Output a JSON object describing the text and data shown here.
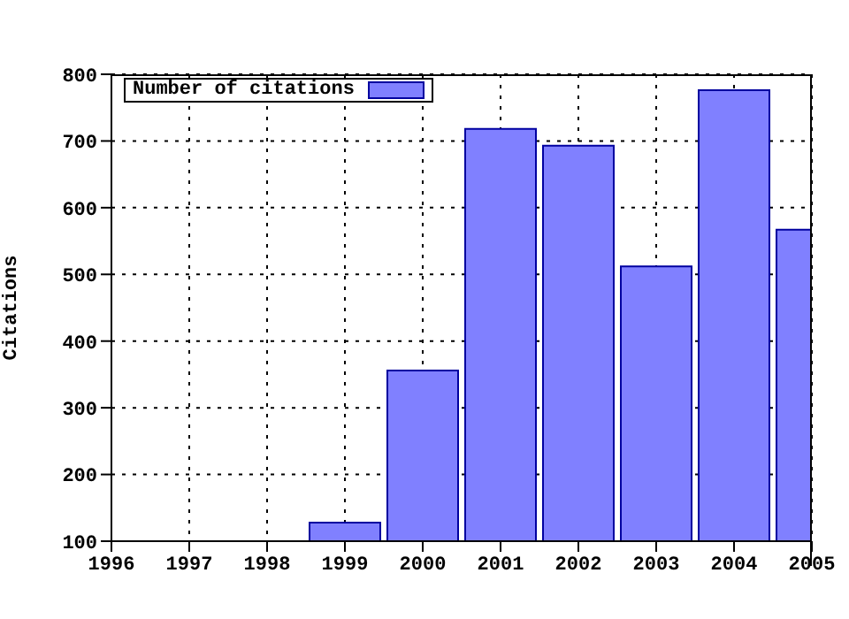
{
  "chart_data": {
    "type": "bar",
    "ylabel": "Citations",
    "x": [
      1999,
      2000,
      2001,
      2002,
      2003,
      2004,
      2005
    ],
    "series": [
      {
        "name": "Number of citations",
        "color": "#8080ff",
        "values": [
          128,
          356,
          718,
          693,
          512,
          776,
          567
        ]
      }
    ],
    "xlim": [
      1996,
      2005
    ],
    "xticks": [
      1996,
      1997,
      1998,
      1999,
      2000,
      2001,
      2002,
      2003,
      2004,
      2005
    ],
    "ylim": [
      100,
      800
    ],
    "yticks": [
      100,
      200,
      300,
      400,
      500,
      600,
      700,
      800
    ],
    "grid": true,
    "legend": "top left"
  }
}
